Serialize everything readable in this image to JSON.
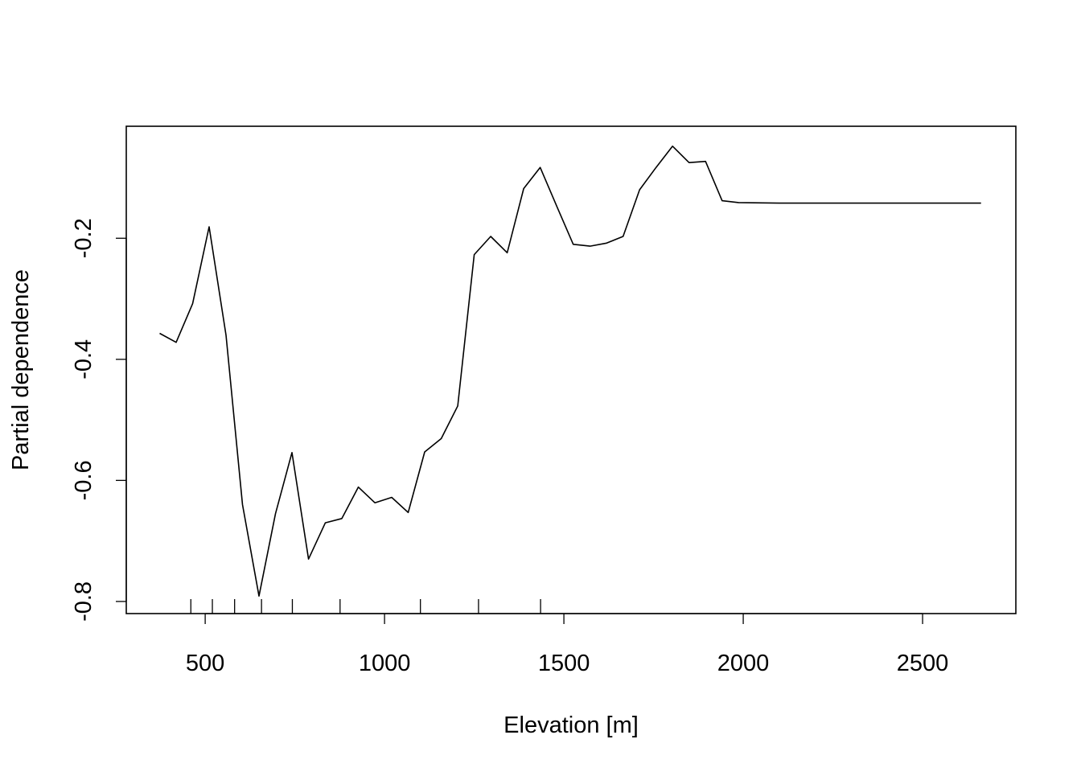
{
  "chart_data": {
    "type": "line",
    "title": "",
    "xlabel": "Elevation [m]",
    "ylabel": "Partial dependence",
    "xlim": [
      280,
      2760
    ],
    "ylim": [
      -0.82,
      -0.015
    ],
    "xticks": [
      500,
      1000,
      1500,
      2000,
      2500
    ],
    "yticks": [
      -0.8,
      -0.6,
      -0.4,
      -0.2
    ],
    "xtick_labels": [
      "500",
      "1000",
      "1500",
      "2000",
      "2500"
    ],
    "ytick_labels": [
      "-0.8",
      "-0.6",
      "-0.4",
      "-0.2"
    ],
    "grid": false,
    "legend": "none",
    "line_color": "#000000",
    "series": [
      {
        "x": [
          373,
          419,
          465,
          511,
          558,
          604,
          650,
          696,
          742,
          788,
          835,
          881,
          927,
          973,
          1020,
          1066,
          1112,
          1158,
          1204,
          1250,
          1296,
          1342,
          1388,
          1434,
          1480,
          1526,
          1573,
          1619,
          1665,
          1711,
          1757,
          1803,
          1849,
          1895,
          1941,
          1987,
          2100,
          2300,
          2500,
          2663
        ],
        "y": [
          -0.357,
          -0.372,
          -0.308,
          -0.181,
          -0.36,
          -0.64,
          -0.791,
          -0.655,
          -0.554,
          -0.73,
          -0.67,
          -0.663,
          -0.611,
          -0.637,
          -0.628,
          -0.653,
          -0.553,
          -0.531,
          -0.477,
          -0.227,
          -0.197,
          -0.224,
          -0.118,
          -0.083,
          -0.147,
          -0.21,
          -0.213,
          -0.208,
          -0.197,
          -0.12,
          -0.083,
          -0.048,
          -0.075,
          -0.073,
          -0.138,
          -0.141,
          -0.142,
          -0.142,
          -0.142,
          -0.142
        ]
      }
    ],
    "rug_x": [
      460,
      520,
      582,
      657,
      743,
      876,
      1100,
      1262,
      1435
    ]
  }
}
